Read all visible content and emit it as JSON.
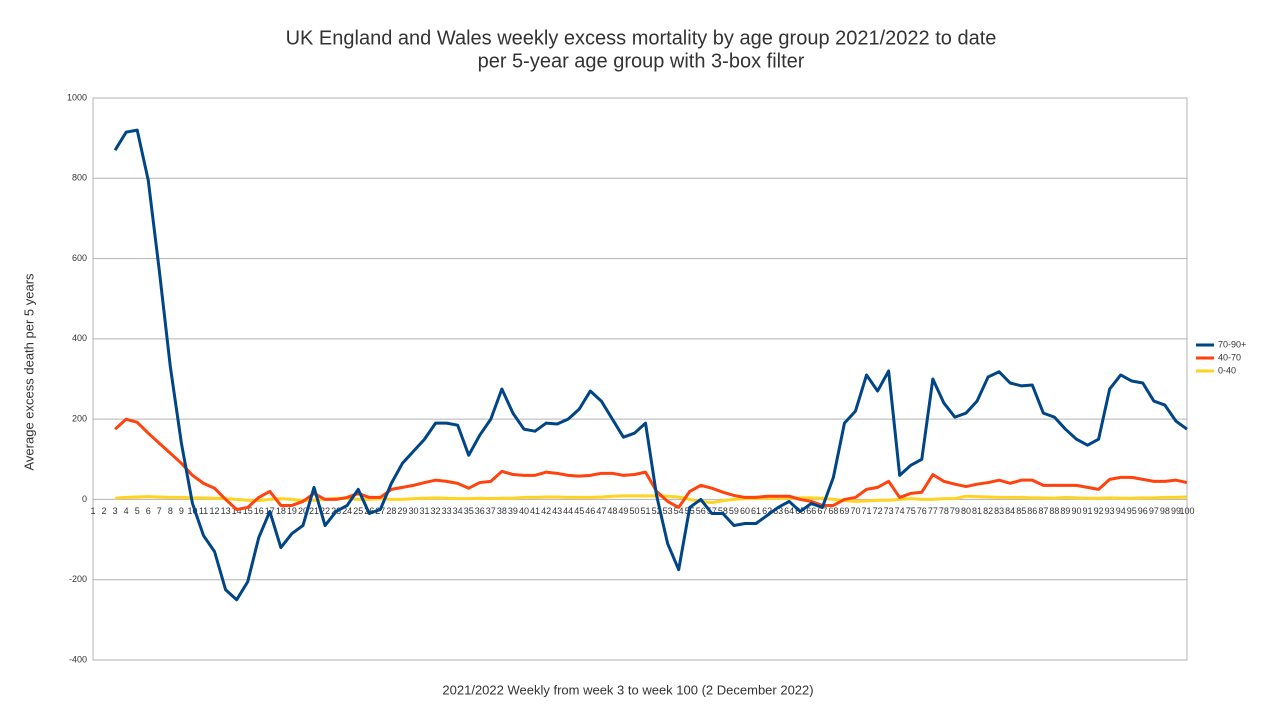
{
  "chart_data": {
    "type": "line",
    "title": "UK England and Wales weekly excess mortality by age group 2021/2022 to date",
    "subtitle": "per 5-year age group with 3-box filter",
    "x_label": "2021/2022 Weekly from week 3 to week 100 (2 December 2022)",
    "y_label": "Average excess death per 5 years",
    "categories": [
      1,
      2,
      3,
      4,
      5,
      6,
      7,
      8,
      9,
      10,
      11,
      12,
      13,
      14,
      15,
      16,
      17,
      18,
      19,
      20,
      21,
      22,
      23,
      24,
      25,
      26,
      27,
      28,
      29,
      30,
      31,
      32,
      33,
      34,
      35,
      36,
      37,
      38,
      39,
      40,
      41,
      42,
      43,
      44,
      45,
      46,
      47,
      48,
      49,
      50,
      51,
      52,
      53,
      54,
      55,
      56,
      57,
      58,
      59,
      60,
      61,
      62,
      63,
      64,
      65,
      66,
      67,
      68,
      69,
      70,
      71,
      72,
      73,
      74,
      75,
      76,
      77,
      78,
      79,
      80,
      81,
      82,
      83,
      84,
      85,
      86,
      87,
      88,
      89,
      90,
      91,
      92,
      93,
      94,
      95,
      96,
      97,
      98,
      99,
      100
    ],
    "series": [
      {
        "name": "70-90+",
        "color": "#004586",
        "values": [
          null,
          null,
          870,
          915,
          920,
          795,
          570,
          330,
          140,
          -10,
          -90,
          -130,
          -225,
          -250,
          -205,
          -95,
          -30,
          -120,
          -85,
          -65,
          30,
          -65,
          -30,
          -15,
          25,
          -35,
          -25,
          40,
          90,
          120,
          150,
          190,
          190,
          185,
          110,
          160,
          200,
          275,
          215,
          175,
          170,
          190,
          188,
          200,
          225,
          270,
          245,
          200,
          155,
          165,
          190,
          10,
          -110,
          -175,
          -20,
          0,
          -35,
          -35,
          -65,
          -60,
          -60,
          -40,
          -20,
          -5,
          -30,
          -10,
          -20,
          55,
          190,
          220,
          310,
          270,
          320,
          60,
          85,
          100,
          300,
          240,
          205,
          215,
          245,
          305,
          318,
          290,
          283,
          285,
          215,
          205,
          175,
          150,
          135,
          150,
          275,
          310,
          295,
          290,
          245,
          235,
          195,
          175
        ]
      },
      {
        "name": "40-70",
        "color": "#ff420e",
        "values": [
          null,
          null,
          175,
          200,
          192,
          165,
          140,
          115,
          90,
          60,
          40,
          28,
          0,
          -25,
          -20,
          5,
          20,
          -15,
          -15,
          -5,
          15,
          0,
          0,
          5,
          15,
          5,
          5,
          25,
          30,
          35,
          42,
          48,
          45,
          40,
          28,
          42,
          45,
          70,
          62,
          60,
          60,
          68,
          65,
          60,
          58,
          60,
          65,
          65,
          60,
          62,
          68,
          20,
          -5,
          -20,
          20,
          35,
          28,
          18,
          10,
          5,
          5,
          8,
          8,
          8,
          0,
          -5,
          -15,
          -15,
          0,
          5,
          25,
          30,
          45,
          5,
          15,
          18,
          62,
          45,
          38,
          32,
          38,
          42,
          48,
          40,
          48,
          48,
          35,
          35,
          35,
          35,
          30,
          25,
          50,
          55,
          55,
          50,
          45,
          45,
          48,
          42
        ]
      },
      {
        "name": "0-40",
        "color": "#ffd320",
        "values": [
          null,
          null,
          3,
          5,
          6,
          7,
          6,
          5,
          5,
          4,
          4,
          3,
          2,
          0,
          -2,
          -3,
          0,
          2,
          0,
          -3,
          -2,
          0,
          3,
          2,
          0,
          0,
          2,
          0,
          0,
          2,
          3,
          4,
          3,
          2,
          2,
          3,
          2,
          3,
          3,
          5,
          5,
          6,
          6,
          5,
          5,
          5,
          6,
          8,
          9,
          9,
          9,
          9,
          8,
          6,
          0,
          -5,
          -8,
          -3,
          0,
          2,
          2,
          3,
          3,
          3,
          4,
          4,
          3,
          0,
          -3,
          -5,
          -4,
          -2,
          -2,
          0,
          2,
          0,
          0,
          2,
          2,
          8,
          7,
          6,
          5,
          5,
          5,
          4,
          4,
          3,
          5,
          4,
          3,
          3,
          4,
          3,
          3,
          4,
          4,
          5,
          5,
          6
        ]
      }
    ],
    "ylim": [
      -400,
      1000
    ],
    "yticks": [
      -400,
      -200,
      0,
      200,
      400,
      600,
      800,
      1000
    ],
    "grid": true,
    "legend": "right"
  }
}
